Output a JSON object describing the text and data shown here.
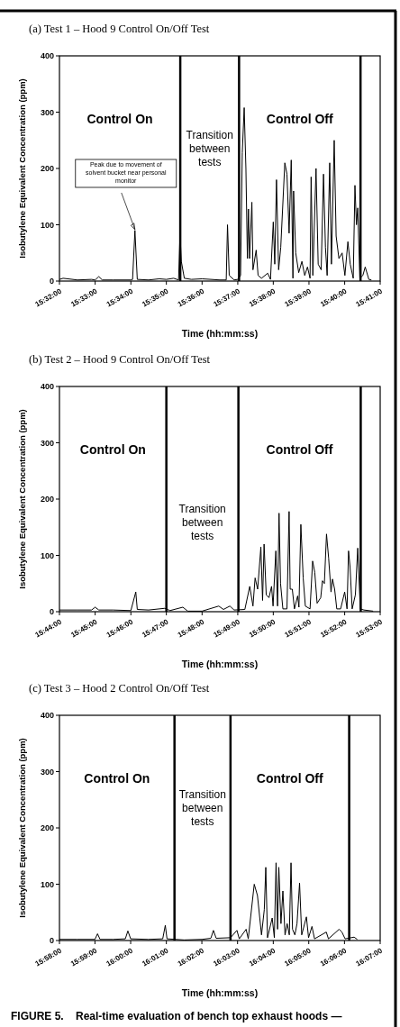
{
  "chart_data": [
    {
      "type": "line",
      "title": "(a) Test 1 – Hood 9 Control On/Off  Test",
      "xlabel": "Time (hh:mm:ss)",
      "ylabel": "Isobutylene Equivalent Concentration (ppm)",
      "x": [
        15.5333,
        15.535,
        15.5417,
        15.5483,
        15.55,
        15.5517,
        15.5533,
        15.5583,
        15.5667,
        15.5675,
        15.5686,
        15.5697,
        15.575,
        15.58,
        15.5833,
        15.5867,
        15.589,
        15.5897,
        15.5903,
        15.5917,
        15.595,
        15.6,
        15.6083,
        15.6113,
        15.6119,
        15.6127,
        15.615,
        15.6167,
        15.618,
        15.6188,
        15.6197,
        15.6205,
        15.6212,
        15.6217,
        15.6222,
        15.6233,
        15.6238,
        15.6253,
        15.6262,
        15.6278,
        15.6307,
        15.632,
        15.6333,
        15.634,
        15.6348,
        15.6358,
        15.6368,
        15.6387,
        15.6397,
        15.6407,
        15.6417,
        15.6425,
        15.6428,
        15.6438,
        15.6452,
        15.6467,
        15.648,
        15.6493,
        15.6505,
        15.651,
        15.6518,
        15.6533,
        15.6543,
        15.6557,
        15.6568,
        15.6577,
        15.6585,
        15.6597,
        15.6605,
        15.6618,
        15.6627,
        15.664,
        15.6655,
        15.6668,
        15.6682,
        15.6693,
        15.6707,
        15.6715,
        15.6722,
        15.6728,
        15.6738,
        15.6752,
        15.6763,
        15.678,
        15.6792
      ],
      "series": [
        {
          "color": "#000000",
          "values": [
            3,
            5,
            2,
            3,
            2,
            8,
            2,
            2,
            2,
            3,
            90,
            3,
            2,
            4,
            3,
            5,
            2,
            85,
            35,
            5,
            3,
            4,
            2,
            2,
            100,
            10,
            2,
            3,
            10,
            228,
            308,
            200,
            40,
            128,
            40,
            140,
            20,
            55,
            10,
            5,
            14,
            3,
            105,
            30,
            180,
            20,
            60,
            210,
            190,
            85,
            215,
            5,
            160,
            50,
            15,
            35,
            10,
            25,
            5,
            185,
            10,
            200,
            30,
            20,
            190,
            60,
            10,
            210,
            30,
            250,
            80,
            40,
            50,
            10,
            70,
            30,
            5,
            170,
            100,
            130,
            5,
            10,
            25,
            3,
            2
          ]
        }
      ],
      "xlim": [
        15.5333,
        15.6833
      ],
      "xticks": [
        {
          "value": 15.5333,
          "label": "15:32:00"
        },
        {
          "value": 15.55,
          "label": "15:33:00"
        },
        {
          "value": 15.5667,
          "label": "15:34:00"
        },
        {
          "value": 15.5833,
          "label": "15:35:00"
        },
        {
          "value": 15.6,
          "label": "15:36:00"
        },
        {
          "value": 15.6167,
          "label": "15:37:00"
        },
        {
          "value": 15.6333,
          "label": "15:38:00"
        },
        {
          "value": 15.65,
          "label": "15:39:00"
        },
        {
          "value": 15.6667,
          "label": "15:40:00"
        },
        {
          "value": 15.6833,
          "label": "15:41:00"
        }
      ],
      "ylim": [
        0,
        400
      ],
      "yticks": [
        0,
        100,
        200,
        300,
        400
      ],
      "grid": false,
      "legend": false,
      "marker": "none",
      "line_style": "solid",
      "ref_lines": [
        {
          "axis": "x",
          "value": 15.5898,
          "color": "#000000"
        },
        {
          "axis": "x",
          "value": 15.6173,
          "color": "#000000"
        },
        {
          "axis": "x",
          "value": 15.6741,
          "color": "#000000"
        }
      ],
      "annotations": [
        "Control On",
        "Transition between tests",
        "Control Off",
        "Peak due to movement of solvent bucket near personal monitor"
      ]
    },
    {
      "type": "line",
      "title": "(b) Test 2 – Hood 9 Control On/Off Test",
      "xlabel": "Time (hh:mm:ss)",
      "ylabel": "Isobutylene Equivalent Concentration (ppm)",
      "x": [
        15.7333,
        15.7417,
        15.7483,
        15.75,
        15.7517,
        15.7583,
        15.7667,
        15.769,
        15.7697,
        15.775,
        15.7825,
        15.785,
        15.791,
        15.7933,
        15.8,
        15.8078,
        15.81,
        15.813,
        15.815,
        15.82,
        15.8223,
        15.8238,
        15.8248,
        15.826,
        15.8275,
        15.8283,
        15.829,
        15.83,
        15.8313,
        15.8325,
        15.8332,
        15.8345,
        15.8353,
        15.836,
        15.8367,
        15.8378,
        15.8397,
        15.8407,
        15.8412,
        15.8422,
        15.8432,
        15.8447,
        15.8453,
        15.8462,
        15.8473,
        15.8483,
        15.8505,
        15.8517,
        15.8527,
        15.8538,
        15.8555,
        15.8563,
        15.8572,
        15.8582,
        15.8592,
        15.8603,
        15.861,
        15.862,
        15.863,
        15.8648,
        15.8667,
        15.8678,
        15.8685,
        15.8692,
        15.8702,
        15.8717,
        15.8728,
        15.874,
        15.8757,
        15.88
      ],
      "series": [
        {
          "color": "#000000",
          "values": [
            3,
            3,
            3,
            8,
            3,
            3,
            2,
            35,
            4,
            3,
            6,
            2,
            8,
            1,
            1,
            10,
            4,
            10,
            3,
            4,
            45,
            10,
            60,
            40,
            115,
            20,
            120,
            30,
            25,
            45,
            10,
            108,
            10,
            175,
            50,
            5,
            5,
            178,
            40,
            40,
            5,
            28,
            8,
            155,
            60,
            10,
            5,
            90,
            70,
            15,
            25,
            55,
            50,
            138,
            95,
            35,
            58,
            40,
            5,
            5,
            35,
            5,
            108,
            80,
            5,
            30,
            113,
            5,
            3,
            1
          ]
        }
      ],
      "xlim": [
        15.7333,
        15.8833
      ],
      "xticks": [
        {
          "value": 15.7333,
          "label": "15:44:00"
        },
        {
          "value": 15.75,
          "label": "15:45:00"
        },
        {
          "value": 15.7667,
          "label": "15:46:00"
        },
        {
          "value": 15.7833,
          "label": "15:47:00"
        },
        {
          "value": 15.8,
          "label": "15:48:00"
        },
        {
          "value": 15.8167,
          "label": "15:49:00"
        },
        {
          "value": 15.8333,
          "label": "15:50:00"
        },
        {
          "value": 15.85,
          "label": "15:51:00"
        },
        {
          "value": 15.8667,
          "label": "15:52:00"
        },
        {
          "value": 15.8833,
          "label": "15:53:00"
        }
      ],
      "ylim": [
        0,
        400
      ],
      "yticks": [
        0,
        100,
        200,
        300,
        400
      ],
      "grid": false,
      "legend": false,
      "marker": "none",
      "line_style": "solid",
      "ref_lines": [
        {
          "axis": "x",
          "value": 15.7833,
          "color": "#000000"
        },
        {
          "axis": "x",
          "value": 15.817,
          "color": "#000000"
        },
        {
          "axis": "x",
          "value": 15.8742,
          "color": "#000000"
        }
      ],
      "annotations": [
        "Control On",
        "Transition between tests",
        "Control Off"
      ]
    },
    {
      "type": "line",
      "title": "(c) Test 3 – Hood 2 Control On/Off  Test",
      "xlabel": "Time (hh:mm:ss)",
      "ylabel": "Isobutylene Equivalent Concentration (ppm)",
      "x": [
        15.9667,
        15.975,
        15.9833,
        15.9845,
        15.9857,
        15.9917,
        15.9975,
        15.9987,
        16.0,
        16.0083,
        16.015,
        16.0162,
        16.017,
        16.025,
        16.0333,
        16.0375,
        16.0387,
        16.04,
        16.0467,
        16.0497,
        16.0508,
        16.054,
        16.055,
        16.0578,
        16.0593,
        16.0612,
        16.0625,
        16.0632,
        16.064,
        16.0662,
        16.0672,
        16.068,
        16.0687,
        16.0693,
        16.0703,
        16.0712,
        16.0722,
        16.0732,
        16.0742,
        16.075,
        16.0757,
        16.0768,
        16.0778,
        16.079,
        16.08,
        16.0822,
        16.0832,
        16.0848,
        16.086,
        16.0915,
        16.0925,
        16.0975,
        16.0988,
        16.1003,
        16.1045,
        16.106
      ],
      "series": [
        {
          "color": "#000000",
          "values": [
            2,
            2,
            2,
            12,
            2,
            2,
            3,
            17,
            3,
            2,
            3,
            27,
            3,
            1,
            2,
            4,
            18,
            4,
            5,
            18,
            3,
            20,
            3,
            100,
            80,
            10,
            55,
            130,
            5,
            40,
            5,
            138,
            20,
            130,
            30,
            88,
            10,
            30,
            10,
            138,
            20,
            10,
            30,
            102,
            10,
            42,
            5,
            25,
            3,
            15,
            3,
            20,
            15,
            3,
            6,
            2
          ]
        }
      ],
      "xlim": [
        15.9667,
        16.1167
      ],
      "xticks": [
        {
          "value": 15.9667,
          "label": "15:58:00"
        },
        {
          "value": 15.9833,
          "label": "15:59:00"
        },
        {
          "value": 16,
          "label": "16:00:00"
        },
        {
          "value": 16.0167,
          "label": "16:01:00"
        },
        {
          "value": 16.0333,
          "label": "16:02:00"
        },
        {
          "value": 16.05,
          "label": "16:03:00"
        },
        {
          "value": 16.0667,
          "label": "16:04:00"
        },
        {
          "value": 16.0833,
          "label": "16:05:00"
        },
        {
          "value": 16.1,
          "label": "16:06:00"
        },
        {
          "value": 16.1167,
          "label": "16:07:00"
        }
      ],
      "ylim": [
        0,
        400
      ],
      "yticks": [
        0,
        100,
        200,
        300,
        400
      ],
      "grid": false,
      "legend": false,
      "marker": "none",
      "line_style": "solid",
      "ref_lines": [
        {
          "axis": "x",
          "value": 16.0205,
          "color": "#000000"
        },
        {
          "axis": "x",
          "value": 16.0467,
          "color": "#000000"
        },
        {
          "axis": "x",
          "value": 16.1022,
          "color": "#000000"
        }
      ],
      "annotations": [
        "Control On",
        "Transition between tests",
        "Control Off",
        "FIGURE 5.    Real-time evaluation of bench top exhaust hoods —"
      ]
    }
  ]
}
